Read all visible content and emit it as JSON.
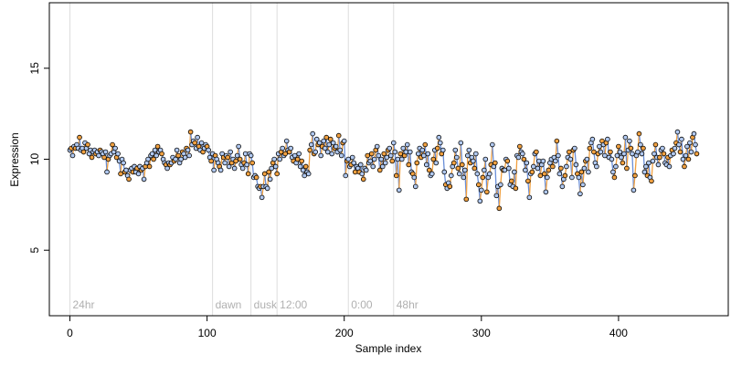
{
  "chart_data": {
    "type": "scatter",
    "title": "",
    "xlabel": "Sample index",
    "ylabel": "Expression",
    "xlim": [
      -15,
      480
    ],
    "ylim": [
      1.4,
      18.6
    ],
    "x_ticks": [
      0,
      100,
      200,
      300,
      400
    ],
    "y_ticks": [
      5,
      10,
      15
    ],
    "x_tick_labels": [
      "0",
      "100",
      "200",
      "300",
      "400"
    ],
    "y_tick_labels": [
      "5",
      "10",
      "15"
    ],
    "grid": false,
    "legend": "none",
    "colors": {
      "point_fill_light": "#b0c8f0",
      "point_fill_dark": "#f0a040",
      "segment_down": "#6a8fd8",
      "segment_up": "#f0a040",
      "phase_line": "#dddddd",
      "phase_text": "#b0b0b0"
    },
    "phase_markers": [
      {
        "x": 0,
        "label": "24hr"
      },
      {
        "x": 104,
        "label": "dawn"
      },
      {
        "x": 132,
        "label": "dusk"
      },
      {
        "x": 151,
        "label": "12:00"
      },
      {
        "x": 203,
        "label": "0:00"
      },
      {
        "x": 236,
        "label": "48hr"
      }
    ],
    "series": [
      {
        "values": [
          10.5,
          10.6,
          10.2,
          10.7,
          10.6,
          10.8,
          10.6,
          11.2,
          10.5,
          10.6,
          10.4,
          10.9,
          10.6,
          10.8,
          10.3,
          10.5,
          10.1,
          10.4,
          10.5,
          10.3,
          10.4,
          10.2,
          10.5,
          10.4,
          10.3,
          10.1,
          10.4,
          9.3,
          10.0,
          10.2,
          10.3,
          10.8,
          10.4,
          10.6,
          10.1,
          10.3,
          9.9,
          9.2,
          10.0,
          9.8,
          9.3,
          9.4,
          9.1,
          8.9,
          9.4,
          9.5,
          9.3,
          9.6,
          9.3,
          9.5,
          9.2,
          9.6,
          9.4,
          9.5,
          8.9,
          9.6,
          9.8,
          10.0,
          9.6,
          10.2,
          10.3,
          10.0,
          10.5,
          10.2,
          10.7,
          10.4,
          10.5,
          10.3,
          10.0,
          9.8,
          9.7,
          9.5,
          9.8,
          9.7,
          9.8,
          10.1,
          9.9,
          10.0,
          10.5,
          10.2,
          9.8,
          10.0,
          10.4,
          10.3,
          10.1,
          10.6,
          10.5,
          10.2,
          11.5,
          10.8,
          11.0,
          10.9,
          10.6,
          11.2,
          10.7,
          10.5,
          10.9,
          10.4,
          10.6,
          10.8,
          10.7,
          10.5,
          10.1,
          9.9,
          10.3,
          9.4,
          10.2,
          10.0,
          9.8,
          9.6,
          9.4,
          10.3,
          10.1,
          9.8,
          10.2,
          10.1,
          9.6,
          10.4,
          9.8,
          10.0,
          9.5,
          9.9,
          10.2,
          10.7,
          10.0,
          9.7,
          9.5,
          9.8,
          10.3,
          9.7,
          9.2,
          10.3,
          10.2,
          9.8,
          9.0,
          9.1,
          9.0,
          8.5,
          8.4,
          8.5,
          7.9,
          8.5,
          9.2,
          8.5,
          8.4,
          9.3,
          8.9,
          9.5,
          9.8,
          10.0,
          9.6,
          9.2,
          10.3,
          10.0,
          10.4,
          10.6,
          10.2,
          10.3,
          11.0,
          10.5,
          10.4,
          10.6,
          10.1,
          9.9,
          10.2,
          9.8,
          10.0,
          10.3,
          9.6,
          9.9,
          9.4,
          9.1,
          9.6,
          9.3,
          9.2,
          10.5,
          10.8,
          11.4,
          10.3,
          10.4,
          11.1,
          10.8,
          10.9,
          10.2,
          10.7,
          11.0,
          10.6,
          11.2,
          10.4,
          10.8,
          11.1,
          10.3,
          10.9,
          10.6,
          10.7,
          10.4,
          11.3,
          10.5,
          10.2,
          10.9,
          11.0,
          9.1,
          9.9,
          10.0,
          9.6,
          9.7,
          10.1,
          9.8,
          9.3,
          9.6,
          9.5,
          9.3,
          9.7,
          9.2,
          8.9,
          9.5,
          9.4,
          10.2,
          9.8,
          9.9,
          10.3,
          9.6,
          10.0,
          10.5,
          10.7,
          10.2,
          9.4,
          10.0,
          9.6,
          10.3,
          9.8,
          10.1,
          10.5,
          10.6,
          10.2,
          9.9,
          10.9,
          10.4,
          9.1,
          10.0,
          8.3,
          10.3,
          10.0,
          10.6,
          10.2,
          10.4,
          10.8,
          9.7,
          10.4,
          9.3,
          9.2,
          9.0,
          8.5,
          9.8,
          10.3,
          10.6,
          10.1,
          10.5,
          10.2,
          10.8,
          9.7,
          10.3,
          9.4,
          9.1,
          9.2,
          10.0,
          10.5,
          9.8,
          10.6,
          11.2,
          10.9,
          10.3,
          10.5,
          9.3,
          8.6,
          8.4,
          8.7,
          8.5,
          9.1,
          9.6,
          9.8,
          10.5,
          10.1,
          9.5,
          9.2,
          10.9,
          9.7,
          9.0,
          9.4,
          7.8,
          10.2,
          10.5,
          9.8,
          10.1,
          9.9,
          9.5,
          10.3,
          9.2,
          8.6,
          7.7,
          8.3,
          9.0,
          9.4,
          10.0,
          8.2,
          9.0,
          9.2,
          9.7,
          10.8,
          9.6,
          9.8,
          8.0,
          8.5,
          7.3,
          8.6,
          9.5,
          9.4,
          9.4,
          10.0,
          9.9,
          9.5,
          8.6,
          8.8,
          8.5,
          9.3,
          8.4,
          10.2,
          10.1,
          10.7,
          10.4,
          10.3,
          10.0,
          9.4,
          9.8,
          8.8,
          7.9,
          9.2,
          9.3,
          9.6,
          10.3,
          10.4,
          9.5,
          9.9,
          9.1,
          9.7,
          9.9,
          9.2,
          8.2,
          9.0,
          9.4,
          9.8,
          10.0,
          9.6,
          10.1,
          9.9,
          11.0,
          10.2,
          9.2,
          9.5,
          8.5,
          8.9,
          9.1,
          9.6,
          10.1,
          10.4,
          10.0,
          9.0,
          10.5,
          10.6,
          9.7,
          9.2,
          9.0,
          8.1,
          9.3,
          8.6,
          9.5,
          9.9,
          10.0,
          9.3,
          10.6,
          10.9,
          11.1,
          10.4,
          9.8,
          9.6,
          10.3,
          10.7,
          10.4,
          11.0,
          10.8,
          10.2,
          10.9,
          11.1,
          10.1,
          10.4,
          10.0,
          9.3,
          9.0,
          9.6,
          10.2,
          10.7,
          10.4,
          10.1,
          9.8,
          10.3,
          11.2,
          9.5,
          10.5,
          11.0,
          10.6,
          10.3,
          8.3,
          9.1,
          10.2,
          10.4,
          11.4,
          10.8,
          10.3,
          10.6,
          9.3,
          9.6,
          9.1,
          9.8,
          9.0,
          8.8,
          9.9,
          10.3,
          10.8,
          10.1,
          9.7,
          10.1,
          10.5,
          10.6,
          10.3,
          9.8,
          9.7,
          10.1,
          9.6,
          10.2,
          10.5,
          10.3,
          10.6,
          10.9,
          11.5,
          10.8,
          10.4,
          11.1,
          10.0,
          9.6,
          10.2,
          10.7,
          10.0,
          10.9,
          10.4,
          11.2,
          11.4,
          10.8,
          10.3
        ]
      }
    ]
  }
}
